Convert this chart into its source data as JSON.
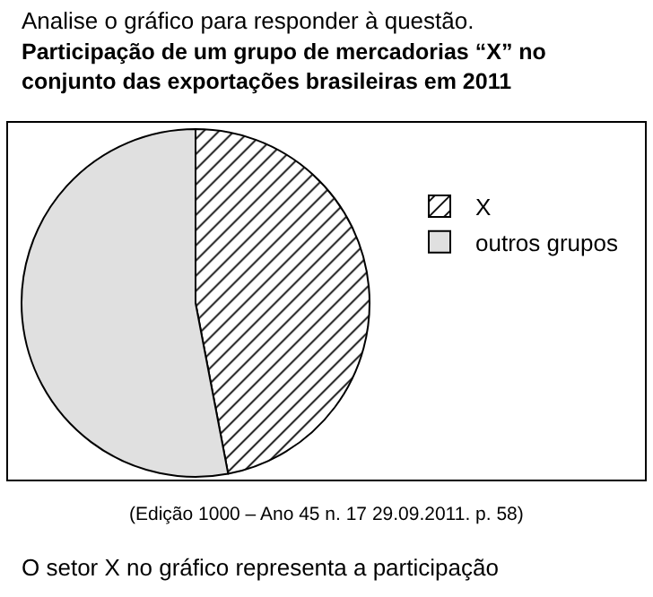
{
  "chart_data": {
    "type": "pie",
    "title": "Participação de um grupo de mercadorias “X” no conjunto das exportações brasileiras em 2011",
    "categories": [
      "X",
      "outros grupos"
    ],
    "values": [
      47,
      53
    ],
    "colors": [
      "#000000",
      "#e0e0e0"
    ],
    "legend": "right",
    "annotations": [
      "Analise o gráfico para responder à questão.",
      "(Edição 1000 – Ano 45 n. 17 29.09.2011. p. 58)",
      "O setor X no gráfico representa a participação"
    ]
  }
}
